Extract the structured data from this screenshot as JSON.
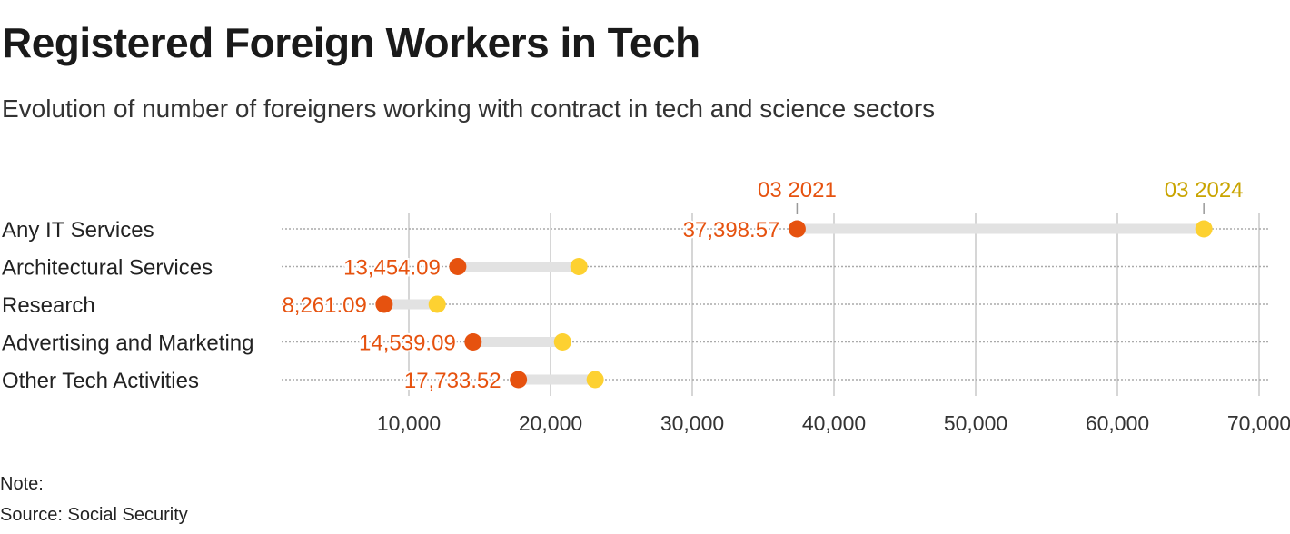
{
  "chart_data": {
    "type": "dumbbell",
    "title": "Registered Foreign Workers in Tech",
    "subtitle": "Evolution of number of foreigners working with contract in tech and science sectors",
    "categories": [
      "Any IT Services",
      "Architectural Services",
      "Research",
      "Advertising and Marketing",
      "Other Tech Activities"
    ],
    "series": [
      {
        "name": "03 2021",
        "color": "#e6520f",
        "label_color": "#e6520f",
        "values": [
          37398.57,
          13454.09,
          8261.09,
          14539.09,
          17733.52
        ],
        "value_labels": [
          "37,398.57",
          "13,454.09",
          "8,261.09",
          "14,539.09",
          "17,733.52"
        ]
      },
      {
        "name": "03 2024",
        "color": "#fdd131",
        "label_color": "#c9a400",
        "values": [
          66100,
          22000,
          12000,
          20850,
          23150
        ]
      }
    ],
    "xlim": [
      0,
      70000
    ],
    "xticks": [
      10000,
      20000,
      30000,
      40000,
      50000,
      60000,
      70000
    ],
    "xtick_labels": [
      "10,000",
      "20,000",
      "30,000",
      "40,000",
      "50,000",
      "60,000",
      "70,000"
    ],
    "grid": true,
    "legend_placement": "top, labels above first row"
  },
  "footer": {
    "note": "Note:",
    "source": "Source: Social Security"
  }
}
